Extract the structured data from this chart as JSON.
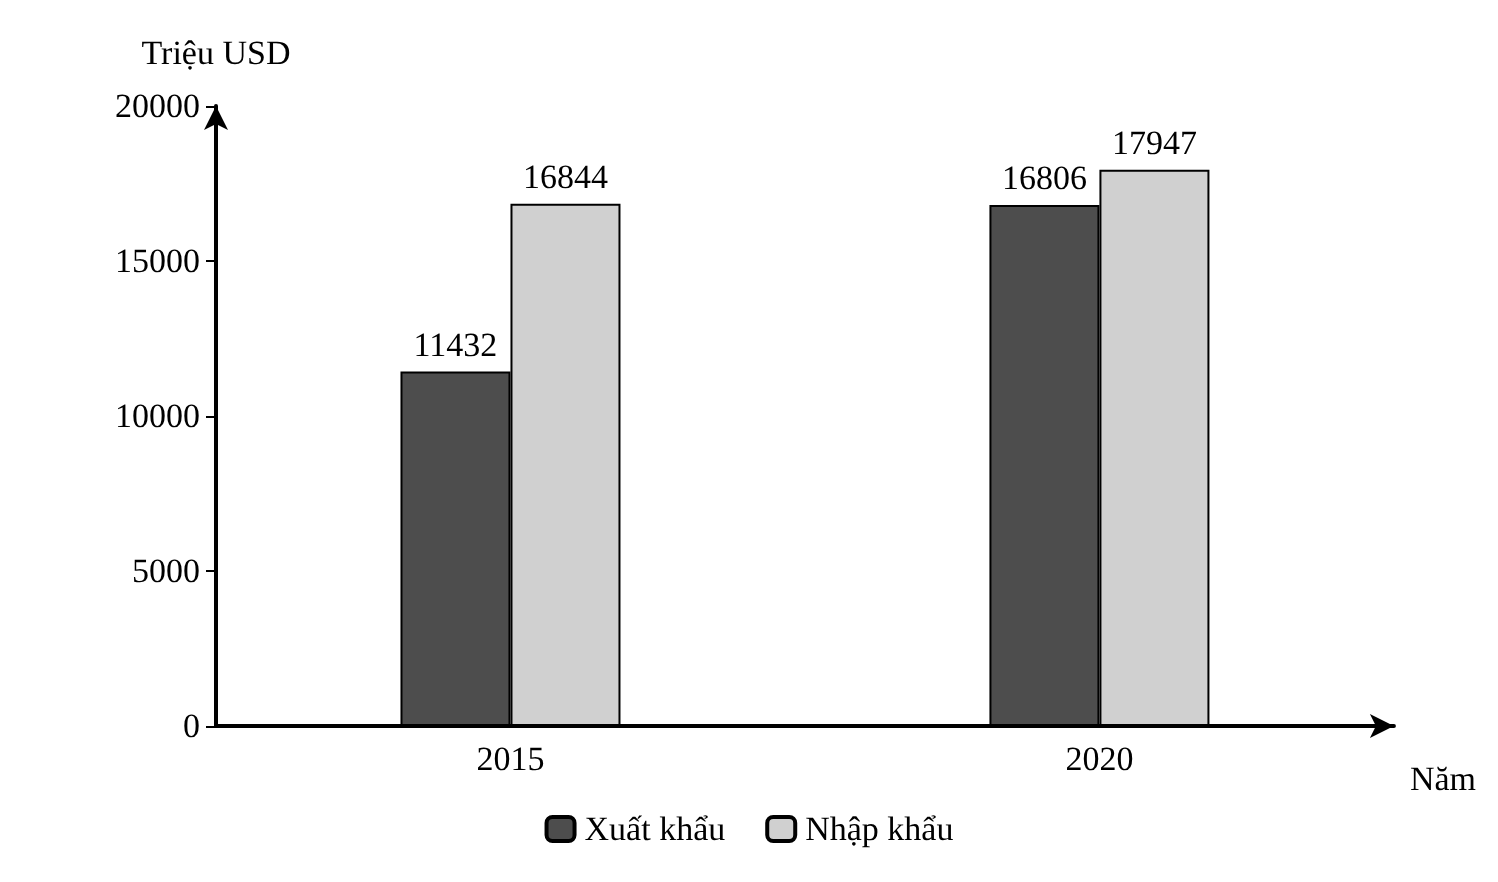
{
  "chart_data": {
    "type": "bar",
    "ylabel": "Triệu USD",
    "xlabel": "Năm",
    "categories": [
      "2015",
      "2020"
    ],
    "series": [
      {
        "name": "Xuất khẩu",
        "color": "#4d4d4d",
        "values": [
          11432,
          16806
        ]
      },
      {
        "name": "Nhập khẩu",
        "color": "#d0d0d0",
        "values": [
          16844,
          17947
        ]
      }
    ],
    "ylim": [
      0,
      20000
    ],
    "yticks": [
      0,
      5000,
      10000,
      15000,
      20000
    ],
    "grid": false,
    "legend": "bottom",
    "data_labels": true
  }
}
